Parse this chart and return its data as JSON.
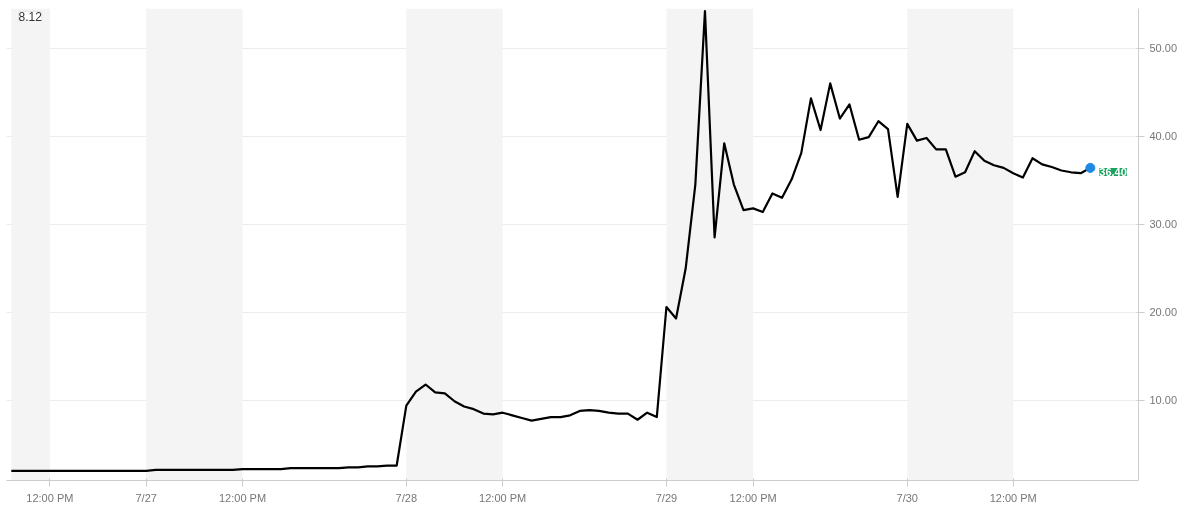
{
  "chart_data": {
    "type": "line",
    "annotations": [
      "8.12"
    ],
    "categories": [
      null,
      null,
      null,
      null,
      "12:00 PM",
      null,
      null,
      null,
      null,
      null,
      null,
      null,
      null,
      null,
      "7/27",
      null,
      null,
      null,
      null,
      null,
      null,
      null,
      null,
      null,
      "12:00 PM",
      null,
      null,
      null,
      null,
      null,
      null,
      null,
      null,
      null,
      null,
      null,
      null,
      null,
      null,
      null,
      null,
      "7/28",
      null,
      null,
      null,
      null,
      null,
      null,
      null,
      null,
      null,
      "12:00 PM",
      null,
      null,
      null,
      null,
      null,
      null,
      null,
      null,
      null,
      null,
      null,
      null,
      null,
      null,
      null,
      null,
      "7/29",
      null,
      null,
      null,
      null,
      null,
      null,
      null,
      null,
      "12:00 PM",
      null,
      null,
      null,
      null,
      null,
      null,
      null,
      null,
      null,
      null,
      null,
      null,
      null,
      null,
      null,
      "7/30",
      null,
      null,
      null,
      null,
      null,
      null,
      null,
      null,
      null,
      null,
      "12:00 PM",
      null,
      null,
      null,
      null,
      null,
      null,
      null,
      null
    ],
    "series": [
      {
        "color": "#000000",
        "values": [
          2.0,
          2.0,
          2.0,
          2.0,
          2.0,
          2.0,
          2.0,
          2.0,
          2.0,
          2.0,
          2.0,
          2.0,
          2.0,
          2.0,
          2.0,
          2.1,
          2.1,
          2.1,
          2.1,
          2.1,
          2.1,
          2.1,
          2.1,
          2.1,
          2.2,
          2.2,
          2.2,
          2.2,
          2.2,
          2.3,
          2.3,
          2.3,
          2.3,
          2.3,
          2.3,
          2.4,
          2.4,
          2.5,
          2.5,
          2.6,
          2.6,
          9.4,
          11.0,
          11.8,
          10.9,
          10.8,
          9.9,
          9.3,
          9.0,
          8.5,
          8.4,
          8.6,
          8.3,
          8.0,
          7.7,
          7.9,
          8.1,
          8.1,
          8.3,
          8.8,
          8.9,
          8.8,
          8.6,
          8.5,
          8.5,
          7.8,
          8.6,
          8.1,
          20.6,
          19.3,
          25.0,
          34.5,
          54.2,
          28.5,
          39.2,
          34.5,
          31.6,
          31.8,
          31.4,
          33.5,
          33.0,
          35.1,
          38.1,
          44.3,
          40.7,
          46.0,
          42.0,
          43.6,
          39.6,
          39.9,
          41.7,
          40.8,
          33.1,
          41.4,
          39.5,
          39.8,
          38.5,
          38.5,
          35.4,
          35.9,
          38.3,
          37.2,
          36.7,
          36.4,
          35.8,
          35.3,
          37.5,
          36.8,
          36.5,
          36.1,
          35.9,
          35.8,
          36.4
        ]
      },
      {
        "type": "scatter",
        "color": "#1e88e5",
        "marker": "circle",
        "values": [
          null,
          null,
          null,
          null,
          null,
          null,
          null,
          null,
          null,
          null,
          null,
          null,
          null,
          null,
          null,
          null,
          null,
          null,
          null,
          null,
          null,
          null,
          null,
          null,
          null,
          null,
          null,
          null,
          null,
          null,
          null,
          null,
          null,
          null,
          null,
          null,
          null,
          null,
          null,
          null,
          null,
          null,
          null,
          null,
          null,
          null,
          null,
          null,
          null,
          null,
          null,
          null,
          null,
          null,
          null,
          null,
          null,
          null,
          null,
          null,
          null,
          null,
          null,
          null,
          null,
          null,
          null,
          null,
          null,
          null,
          null,
          null,
          null,
          null,
          null,
          null,
          null,
          null,
          null,
          null,
          null,
          null,
          null,
          null,
          null,
          null,
          null,
          null,
          null,
          null,
          null,
          null,
          null,
          null,
          null,
          null,
          null,
          null,
          null,
          null,
          null,
          null,
          null,
          null,
          null,
          null,
          null,
          null,
          null,
          null,
          null,
          null,
          36.4
        ],
        "value_labels": [
          null,
          null,
          null,
          null,
          null,
          null,
          null,
          null,
          null,
          null,
          null,
          null,
          null,
          null,
          null,
          null,
          null,
          null,
          null,
          null,
          null,
          null,
          null,
          null,
          null,
          null,
          null,
          null,
          null,
          null,
          null,
          null,
          null,
          null,
          null,
          null,
          null,
          null,
          null,
          null,
          null,
          null,
          null,
          null,
          null,
          null,
          null,
          null,
          null,
          null,
          null,
          null,
          null,
          null,
          null,
          null,
          null,
          null,
          null,
          null,
          null,
          null,
          null,
          null,
          null,
          null,
          null,
          null,
          null,
          null,
          null,
          null,
          null,
          null,
          null,
          null,
          null,
          null,
          null,
          null,
          null,
          null,
          null,
          null,
          null,
          null,
          null,
          null,
          null,
          null,
          null,
          null,
          null,
          null,
          null,
          null,
          null,
          null,
          null,
          null,
          null,
          null,
          null,
          null,
          null,
          null,
          null,
          null,
          null,
          null,
          null,
          null,
          "36.40"
        ]
      }
    ],
    "ylim": [
      0.9,
      54.5
    ],
    "yticks": [
      {
        "value": 10,
        "label": "10.00"
      },
      {
        "value": 20,
        "label": "20.00"
      },
      {
        "value": 30,
        "label": "30.00"
      },
      {
        "value": 40,
        "label": "40.00"
      },
      {
        "value": 50,
        "label": "50.00"
      }
    ],
    "grid": "y",
    "marker": "none",
    "line_style": "solid"
  }
}
